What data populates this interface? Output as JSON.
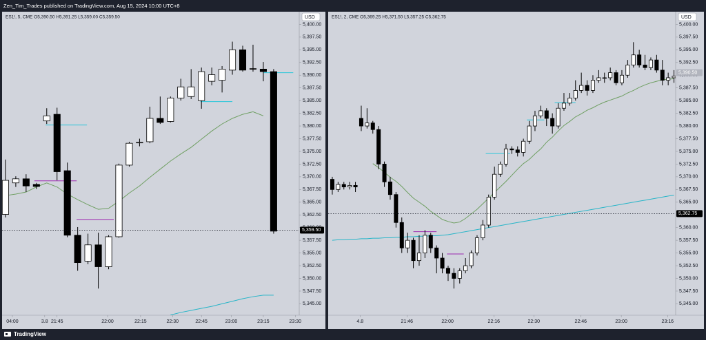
{
  "header": "Zen_Tim_Trades published on TradingView.com, Aug 15, 2024 10:00 UTC+8",
  "footer": "TradingView",
  "chart_data": [
    {
      "type": "candlestick",
      "legend": "ES1!, 5, CME  O5,390.50  H5,391.25  L5,359.00  C5,359.50",
      "currency": "USD",
      "up_color": "#ffffff",
      "down_color": "#000000",
      "open": [
        5362.6,
        5368.8,
        5369.6,
        5368.5,
        5381,
        5382.3,
        5371.2,
        5358.5,
        5353.4,
        5356.6,
        5352.3,
        5358.2,
        5372.3,
        5376.7,
        5376.9,
        5381.5,
        5380.9,
        5385.5,
        5385.8,
        5385,
        5388.8,
        5389,
        5391,
        5395,
        5391.3,
        5391.2,
        5390.7
      ],
      "high": [
        5373.4,
        5370.1,
        5370.5,
        5368.8,
        5383.5,
        5383.6,
        5372.8,
        5360.1,
        5358.8,
        5359,
        5358.5,
        5372.6,
        5376.9,
        5377.5,
        5383.8,
        5385.8,
        5385.8,
        5389.3,
        5391.2,
        5391.5,
        5391.5,
        5391.8,
        5396.6,
        5395.8,
        5396,
        5392.6,
        5391.2
      ],
      "low": [
        5362,
        5368,
        5367,
        5367.6,
        5380.4,
        5369.3,
        5358.1,
        5351.5,
        5352.8,
        5348,
        5351.8,
        5358,
        5372,
        5376,
        5376.6,
        5380.4,
        5380.7,
        5385,
        5385.3,
        5383.4,
        5388,
        5386.6,
        5390.1,
        5390.7,
        5390.7,
        5388.8,
        5358.8
      ],
      "close": [
        5369.3,
        5369.6,
        5368.2,
        5368.1,
        5382,
        5371,
        5358.5,
        5353.1,
        5356.6,
        5352.3,
        5358.2,
        5372.3,
        5376.6,
        5376.8,
        5381.5,
        5380.7,
        5385.5,
        5387.7,
        5387.7,
        5390.7,
        5390.1,
        5391.2,
        5395,
        5391,
        5391.2,
        5390.7,
        5359.3
      ],
      "lines": [
        {
          "color": "#6f9f62",
          "values": [
            5366.3,
            5366.6,
            5367,
            5368,
            5368.8,
            5368,
            5366.6,
            5365.5,
            5364.5,
            5363.6,
            5363.8,
            5365.2,
            5366.8,
            5368.2,
            5369.9,
            5371.5,
            5373.1,
            5374.5,
            5375.8,
            5377.4,
            5379,
            5380.4,
            5381.5,
            5382.3,
            5382.8,
            5382,
            null
          ]
        },
        {
          "color": "#26b5c8",
          "values": [
            null,
            null,
            null,
            null,
            null,
            null,
            null,
            null,
            null,
            null,
            null,
            null,
            null,
            null,
            null,
            null,
            5342.8,
            5343.3,
            5343.7,
            5344.1,
            5344.5,
            5345,
            5345.5,
            5346,
            5346.4,
            5346.7,
            5346.7
          ]
        }
      ],
      "levels": [
        {
          "value": 5380.2,
          "color": "#26c6da",
          "from": 3.9,
          "to": 7.9
        },
        {
          "value": 5369.2,
          "color": "#9c27b0",
          "from": 2.8,
          "to": 6.9
        },
        {
          "value": 5361.6,
          "color": "#9c27b0",
          "from": 6.9,
          "to": 10.5
        },
        {
          "value": 5384.8,
          "color": "#26c6da",
          "from": 18.9,
          "to": 22
        },
        {
          "value": 5390.5,
          "color": "#26c6da",
          "from": 25,
          "to": 27.9
        }
      ],
      "xlim": [
        -0.33,
        28.48
      ],
      "xticks": [
        {
          "value": 0.67,
          "label": "04:00"
        },
        3.8,
        {
          "value": 5.0,
          "label": "21:45"
        },
        {
          "value": 9.9,
          "label": "22:00"
        },
        {
          "value": 13.1,
          "label": "22:15"
        },
        {
          "value": 16.2,
          "label": "22:30"
        },
        {
          "value": 19.0,
          "label": "22:45"
        },
        {
          "value": 21.9,
          "label": "23:00"
        },
        {
          "value": 25.0,
          "label": "23:15"
        },
        {
          "value": 28.1,
          "label": "23:30"
        }
      ],
      "ylim": [
        5342.75,
        5402.5
      ],
      "yticks": [
        {
          "value": 5345,
          "label": "5,345.00"
        },
        {
          "value": 5347.5,
          "label": "5,347.50"
        },
        {
          "value": 5350,
          "label": "5,350.00"
        },
        {
          "value": 5352.5,
          "label": "5,352.50"
        },
        {
          "value": 5355,
          "label": "5,355.00"
        },
        {
          "value": 5357.5,
          "label": "5,357.50"
        },
        {
          "value": 5360,
          "label": "5,360.00"
        },
        {
          "value": 5362.5,
          "label": "5,362.50"
        },
        {
          "value": 5365,
          "label": "5,365.00"
        },
        {
          "value": 5367.5,
          "label": "5,367.50"
        },
        {
          "value": 5370,
          "label": "5,370.00"
        },
        {
          "value": 5372.5,
          "label": "5,372.50"
        },
        {
          "value": 5375,
          "label": "5,375.00"
        },
        {
          "value": 5377.5,
          "label": "5,377.50"
        },
        {
          "value": 5380,
          "label": "5,380.00"
        },
        {
          "value": 5382.5,
          "label": "5,382.50"
        },
        {
          "value": 5385,
          "label": "5,385.00"
        },
        {
          "value": 5387.5,
          "label": "5,387.50"
        },
        {
          "value": 5390,
          "label": "5,390.00"
        },
        {
          "value": 5392.5,
          "label": "5,392.50"
        },
        {
          "value": 5395,
          "label": "5,395.00"
        },
        {
          "value": 5397.5,
          "label": "5,397.50"
        },
        {
          "value": 5400,
          "label": "5,400.00"
        }
      ],
      "price_labels": [
        {
          "value": 5359.5,
          "label": "5,359.50",
          "color": "#000000",
          "line": "dotted"
        }
      ]
    },
    {
      "type": "candlestick",
      "legend": "ES1!, 2, CME  O5,369.25  H5,371.50  L5,357.25  C5,362.75",
      "currency": "USD",
      "up_color": "#ffffff",
      "down_color": "#000000",
      "open": [
        5369.5,
        5367.5,
        5368.5,
        5368,
        5368.3,
        5381.5,
        5380,
        5380.6,
        5379.3,
        5372.5,
        5369,
        5366.5,
        5361,
        5356,
        5357.5,
        5353.5,
        5355,
        5358.5,
        5356,
        5354,
        5352,
        5351,
        5350,
        5351.5,
        5352.5,
        5355,
        5358,
        5360.5,
        5366,
        5370.5,
        5372.5,
        5375.5,
        5375.3,
        5374.8,
        5377,
        5380,
        5382,
        5383,
        5381.5,
        5380,
        5383.5,
        5384.5,
        5385.5,
        5387,
        5388,
        5387,
        5389,
        5389.5,
        5389.5,
        5390.5,
        5388.5,
        5390,
        5392,
        5394,
        5392,
        5391.5,
        5393,
        5391,
        5389,
        5389.5
      ],
      "high": [
        5370,
        5369,
        5369,
        5369,
        5369,
        5384,
        5383.5,
        5381,
        5380,
        5373,
        5370,
        5367,
        5362,
        5359,
        5358,
        5358.5,
        5359.5,
        5359,
        5356.5,
        5355,
        5352.5,
        5352,
        5352,
        5354,
        5355.5,
        5358.5,
        5361.5,
        5366.5,
        5372,
        5373,
        5376.5,
        5376,
        5376,
        5377.5,
        5381,
        5383,
        5384,
        5383.5,
        5382.5,
        5384.5,
        5386.5,
        5386.5,
        5389,
        5390.5,
        5389,
        5390,
        5391,
        5390.5,
        5391.5,
        5391,
        5391,
        5393,
        5396.5,
        5395,
        5394,
        5393.5,
        5394,
        5393,
        5390.5,
        5391
      ],
      "low": [
        5366.5,
        5367,
        5367.5,
        5367.5,
        5367,
        5379,
        5379.5,
        5378.5,
        5371.5,
        5368,
        5365.5,
        5360,
        5355,
        5355,
        5352,
        5352.5,
        5354,
        5355,
        5351,
        5351,
        5349.5,
        5348,
        5349,
        5351,
        5352,
        5354.5,
        5357.5,
        5360,
        5365.5,
        5370,
        5372,
        5374.5,
        5374,
        5374,
        5376.5,
        5379,
        5381.5,
        5380,
        5378.5,
        5379.5,
        5383,
        5384,
        5385,
        5386.5,
        5386,
        5386.5,
        5388.5,
        5388.5,
        5389,
        5388,
        5388,
        5389.5,
        5391.5,
        5391.5,
        5391,
        5391,
        5390.5,
        5388,
        5388,
        5388.5
      ],
      "close": [
        5367.5,
        5368.5,
        5368,
        5368.3,
        5368,
        5380,
        5380.6,
        5379.3,
        5372.5,
        5369,
        5366.5,
        5361,
        5356,
        5357.5,
        5353.5,
        5355,
        5358.5,
        5356,
        5354,
        5352,
        5351,
        5350,
        5351.5,
        5352.5,
        5355,
        5358,
        5360.5,
        5366,
        5370.5,
        5372.5,
        5375.5,
        5375.3,
        5374.8,
        5377,
        5380,
        5382,
        5383,
        5381.5,
        5380,
        5383.5,
        5384.5,
        5385.5,
        5387,
        5388,
        5387,
        5389,
        5389.5,
        5389.5,
        5390.5,
        5388.5,
        5390,
        5392,
        5394,
        5392,
        5391.5,
        5393,
        5391,
        5389,
        5389.5,
        5389.8
      ],
      "lines": [
        {
          "color": "#6f9f62",
          "values": [
            null,
            null,
            null,
            null,
            null,
            null,
            null,
            5372.6,
            5371.8,
            5370.9,
            5369.9,
            5369.1,
            5368.1,
            5366.9,
            5365.8,
            5365,
            5364.2,
            5363.2,
            5362.4,
            5361.6,
            5361.2,
            5360.9,
            5361.1,
            5361.8,
            5362.7,
            5363.6,
            5364.7,
            5365.8,
            5366.9,
            5368,
            5369.1,
            5370.3,
            5371.5,
            5372.6,
            5373.4,
            5374.5,
            5375.5,
            5376.8,
            5377.8,
            5379,
            5380.1,
            5380.9,
            5381.8,
            5382.4,
            5383.1,
            5383.6,
            5384.2,
            5384.7,
            5385.1,
            5385.5,
            5385.9,
            5386.5,
            5387,
            5387.6,
            5388.1,
            5388.5,
            5388.8,
            5389.1,
            5389.2,
            5389.3
          ]
        },
        {
          "color": "#26b5c8",
          "values": [
            5357.5,
            5357.6,
            5357.6,
            5357.7,
            5357.7,
            5357.8,
            5357.8,
            5357.9,
            5357.9,
            5358,
            5358,
            5358.1,
            5358.1,
            5358.2,
            5358.2,
            5358.3,
            5358.3,
            5358.4,
            5358.4,
            5358.5,
            5358.6,
            5358.8,
            5359,
            5359.2,
            5359.4,
            5359.6,
            5359.8,
            5360,
            5360.2,
            5360.4,
            5360.6,
            5360.8,
            5361,
            5361.2,
            5361.4,
            5361.6,
            5361.8,
            5362,
            5362.2,
            5362.4,
            5362.6,
            5362.8,
            5363,
            5363.2,
            5363.4,
            5363.6,
            5363.8,
            5364,
            5364.2,
            5364.4,
            5364.6,
            5364.8,
            5365,
            5365.2,
            5365.4,
            5365.6,
            5365.8,
            5366,
            5366.2,
            5366.4
          ]
        }
      ],
      "levels": [
        {
          "value": 5359.2,
          "color": "#9c27b0",
          "from": 14,
          "to": 18
        },
        {
          "value": 5354.8,
          "color": "#9c27b0",
          "from": 19.8,
          "to": 22.7
        },
        {
          "value": 5374.6,
          "color": "#26c6da",
          "from": 26.5,
          "to": 30.7
        },
        {
          "value": 5381.2,
          "color": "#26c6da",
          "from": 33.6,
          "to": 36.6
        },
        {
          "value": 5384.6,
          "color": "#26c6da",
          "from": 38.4,
          "to": 42
        }
      ],
      "xlim": [
        -0.71,
        59.29
      ],
      "xticks": [
        4.8,
        {
          "value": 12.9,
          "label": "21:46"
        },
        {
          "value": 19.9,
          "label": "22:00"
        },
        {
          "value": 27.9,
          "label": "22:16"
        },
        {
          "value": 34.8,
          "label": "22:30"
        },
        {
          "value": 42.9,
          "label": "22:46"
        },
        {
          "value": 49.9,
          "label": "23:00"
        },
        {
          "value": 57.9,
          "label": "23:16"
        }
      ],
      "ylim": [
        5342.75,
        5402.5
      ],
      "yticks": [
        {
          "value": 5345,
          "label": "5,345.00"
        },
        {
          "value": 5347.5,
          "label": "5,347.50"
        },
        {
          "value": 5350,
          "label": "5,350.00"
        },
        {
          "value": 5352.5,
          "label": "5,352.50"
        },
        {
          "value": 5355,
          "label": "5,355.00"
        },
        {
          "value": 5357.5,
          "label": "5,357.50"
        },
        {
          "value": 5360,
          "label": "5,360.00"
        },
        {
          "value": 5362.5,
          "label": "5,362.50"
        },
        {
          "value": 5365,
          "label": "5,365.00"
        },
        {
          "value": 5367.5,
          "label": "5,367.50"
        },
        {
          "value": 5370,
          "label": "5,370.00"
        },
        {
          "value": 5372.5,
          "label": "5,372.50"
        },
        {
          "value": 5375,
          "label": "5,375.00"
        },
        {
          "value": 5377.5,
          "label": "5,377.50"
        },
        {
          "value": 5380,
          "label": "5,380.00"
        },
        {
          "value": 5382.5,
          "label": "5,382.50"
        },
        {
          "value": 5385,
          "label": "5,385.00"
        },
        {
          "value": 5387.5,
          "label": "5,387.50"
        },
        {
          "value": 5390,
          "label": "5,390.00"
        },
        {
          "value": 5392.5,
          "label": "5,392.50"
        },
        {
          "value": 5395,
          "label": "5,395.00"
        },
        {
          "value": 5397.5,
          "label": "5,397.50"
        },
        {
          "value": 5400,
          "label": "5,400.00"
        }
      ],
      "price_labels": [
        {
          "value": 5362.75,
          "label": "5,362.75",
          "color": "#000000",
          "line": "dotted"
        },
        {
          "value": 5390.5,
          "label": "5,390.50",
          "color": "#b2b5be"
        }
      ]
    }
  ]
}
